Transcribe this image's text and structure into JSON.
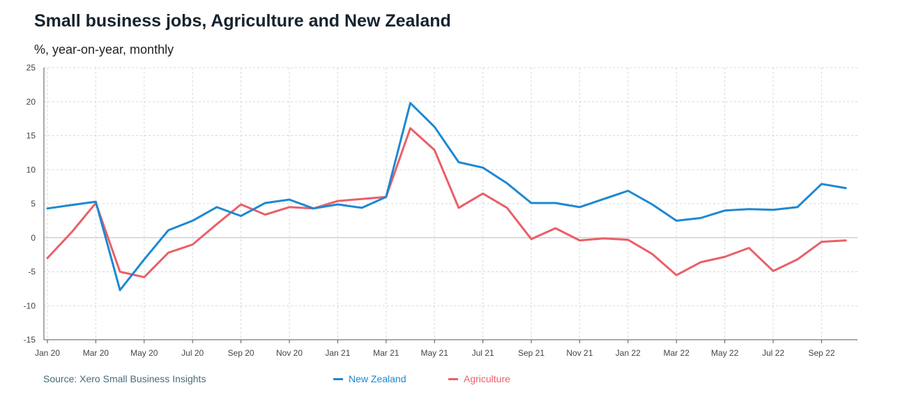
{
  "title": "Small business jobs, Agriculture and New Zealand",
  "subtitle": "%, year-on-year, monthly",
  "source": "Source: Xero Small Business Insights",
  "colors": {
    "new_zealand": "#1d88d3",
    "agriculture": "#ea5f68",
    "grid": "#d8d8d8",
    "zero_line": "#bbbbbb"
  },
  "chart_data": {
    "type": "line",
    "title": "Small business jobs, Agriculture and New Zealand",
    "ylabel": "%, year-on-year, monthly",
    "ylim": [
      -15,
      25
    ],
    "yticks": [
      -15,
      -10,
      -5,
      0,
      5,
      10,
      15,
      20,
      25
    ],
    "grid": true,
    "legend": "bottom",
    "x": [
      "Jan 20",
      "Feb 20",
      "Mar 20",
      "Apr 20",
      "May 20",
      "Jun 20",
      "Jul 20",
      "Aug 20",
      "Sep 20",
      "Oct 20",
      "Nov 20",
      "Dec 20",
      "Jan 21",
      "Feb 21",
      "Mar 21",
      "Apr 21",
      "May 21",
      "Jun 21",
      "Jul 21",
      "Aug 21",
      "Sep 21",
      "Oct 21",
      "Nov 21",
      "Dec 21",
      "Jan 22",
      "Feb 22",
      "Mar 22",
      "Apr 22",
      "May 22",
      "Jun 22",
      "Jul 22",
      "Aug 22",
      "Sep 22",
      "Oct 22"
    ],
    "xtick_labels": [
      "Jan 20",
      "Mar 20",
      "May 20",
      "Jul 20",
      "Sep 20",
      "Nov 20",
      "Jan 21",
      "Mar 21",
      "May 21",
      "Jul 21",
      "Sep 21",
      "Nov 21",
      "Jan 22",
      "Mar 22",
      "May 22",
      "Jul 22",
      "Sep 22"
    ],
    "series": [
      {
        "name": "New Zealand",
        "color": "#1d88d3",
        "values": [
          4.3,
          4.8,
          5.3,
          -7.7,
          -3.2,
          1.1,
          2.5,
          4.5,
          3.2,
          5.1,
          5.6,
          4.3,
          4.9,
          4.4,
          6.0,
          19.8,
          16.3,
          11.1,
          10.3,
          8.0,
          5.1,
          5.1,
          4.5,
          5.7,
          6.9,
          4.9,
          2.5,
          2.9,
          4.0,
          4.2,
          4.1,
          4.5,
          7.9,
          7.3
        ]
      },
      {
        "name": "Agriculture",
        "color": "#ea5f68",
        "values": [
          -3.0,
          0.8,
          5.1,
          -5.0,
          -5.8,
          -2.2,
          -1.0,
          2.0,
          4.9,
          3.4,
          4.5,
          4.3,
          5.4,
          5.7,
          6.0,
          16.1,
          12.9,
          4.4,
          6.5,
          4.4,
          -0.2,
          1.4,
          -0.4,
          -0.1,
          -0.3,
          -2.4,
          -5.5,
          -3.6,
          -2.8,
          -1.5,
          -4.9,
          -3.2,
          -0.6,
          -0.4
        ]
      }
    ]
  }
}
